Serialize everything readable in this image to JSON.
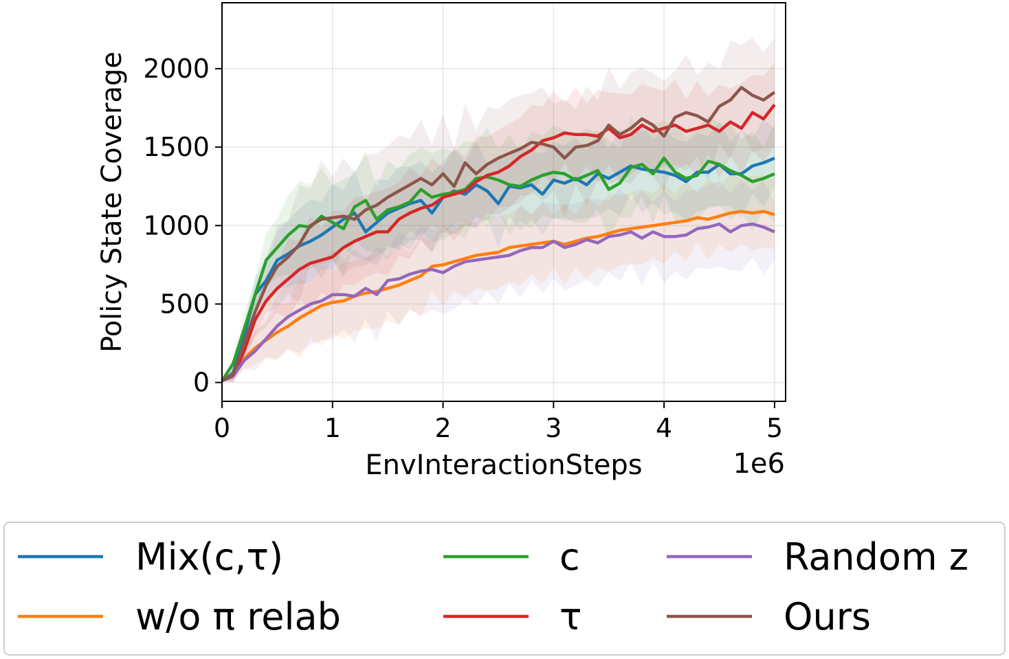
{
  "chart_data": {
    "type": "line",
    "xlabel": "EnvInteractionSteps",
    "x_multiplier": "1e6",
    "ylabel": "Policy State Coverage",
    "xlim": [
      0,
      5.1
    ],
    "ylim": [
      -120,
      2420
    ],
    "xticks": [
      0,
      1,
      2,
      3,
      4,
      5
    ],
    "yticks": [
      0,
      500,
      1000,
      1500,
      2000
    ],
    "grid": true,
    "legend_position": "below",
    "x": [
      0,
      0.1,
      0.2,
      0.3,
      0.4,
      0.5,
      0.6,
      0.7,
      0.8,
      0.9,
      1.0,
      1.1,
      1.2,
      1.3,
      1.4,
      1.5,
      1.6,
      1.7,
      1.8,
      1.9,
      2.0,
      2.1,
      2.2,
      2.3,
      2.4,
      2.5,
      2.6,
      2.7,
      2.8,
      2.9,
      3.0,
      3.1,
      3.2,
      3.3,
      3.4,
      3.5,
      3.6,
      3.7,
      3.8,
      3.9,
      4.0,
      4.1,
      4.2,
      4.3,
      4.4,
      4.5,
      4.6,
      4.7,
      4.8,
      4.9,
      5.0
    ],
    "series": [
      {
        "name": "Mix(c,τ)",
        "color": "#1f77b4",
        "values": [
          10,
          60,
          300,
          560,
          650,
          780,
          820,
          870,
          900,
          940,
          990,
          1040,
          1080,
          960,
          1020,
          1080,
          1110,
          1140,
          1160,
          1080,
          1180,
          1220,
          1200,
          1260,
          1220,
          1140,
          1250,
          1240,
          1260,
          1200,
          1290,
          1270,
          1300,
          1260,
          1330,
          1300,
          1340,
          1380,
          1360,
          1350,
          1340,
          1320,
          1280,
          1340,
          1340,
          1390,
          1330,
          1330,
          1380,
          1400,
          1430
        ],
        "band": 280
      },
      {
        "name": "w/o π relab",
        "color": "#ff7f0e",
        "values": [
          10,
          50,
          150,
          220,
          270,
          320,
          360,
          410,
          450,
          490,
          510,
          520,
          550,
          570,
          580,
          600,
          620,
          650,
          680,
          740,
          750,
          770,
          790,
          810,
          820,
          830,
          860,
          870,
          880,
          890,
          900,
          880,
          900,
          920,
          930,
          950,
          970,
          980,
          990,
          1000,
          1010,
          1020,
          1030,
          1050,
          1040,
          1060,
          1080,
          1090,
          1080,
          1090,
          1070
        ],
        "band": 260
      },
      {
        "name": "c",
        "color": "#2ca02c",
        "values": [
          10,
          120,
          340,
          560,
          780,
          860,
          940,
          1000,
          990,
          1060,
          1020,
          980,
          1120,
          1160,
          1040,
          1100,
          1120,
          1150,
          1230,
          1180,
          1200,
          1210,
          1230,
          1300,
          1310,
          1290,
          1260,
          1250,
          1290,
          1320,
          1340,
          1330,
          1290,
          1320,
          1350,
          1230,
          1270,
          1370,
          1390,
          1330,
          1430,
          1340,
          1300,
          1320,
          1410,
          1390,
          1350,
          1320,
          1280,
          1300,
          1330
        ],
        "band": 320
      },
      {
        "name": "τ",
        "color": "#d62728",
        "values": [
          10,
          40,
          200,
          400,
          520,
          600,
          660,
          720,
          760,
          780,
          800,
          860,
          900,
          930,
          960,
          960,
          1040,
          1080,
          1110,
          1130,
          1180,
          1200,
          1220,
          1280,
          1320,
          1340,
          1380,
          1440,
          1480,
          1540,
          1560,
          1590,
          1580,
          1580,
          1570,
          1620,
          1560,
          1580,
          1640,
          1600,
          1620,
          1640,
          1600,
          1620,
          1640,
          1600,
          1660,
          1620,
          1720,
          1680,
          1770
        ],
        "band": 300
      },
      {
        "name": "Random z",
        "color": "#9467bd",
        "values": [
          10,
          40,
          140,
          200,
          280,
          360,
          420,
          460,
          500,
          520,
          560,
          560,
          550,
          600,
          560,
          650,
          660,
          690,
          710,
          720,
          700,
          740,
          770,
          780,
          790,
          800,
          810,
          840,
          860,
          860,
          900,
          860,
          880,
          910,
          890,
          930,
          940,
          960,
          920,
          960,
          930,
          930,
          940,
          980,
          990,
          1010,
          960,
          1000,
          1010,
          990,
          960
        ],
        "band": 300
      },
      {
        "name": "Ours",
        "color": "#8c564b",
        "values": [
          10,
          50,
          250,
          450,
          620,
          740,
          800,
          880,
          1000,
          1040,
          1050,
          1060,
          1040,
          1100,
          1130,
          1180,
          1220,
          1260,
          1300,
          1260,
          1330,
          1250,
          1400,
          1330,
          1390,
          1430,
          1460,
          1490,
          1530,
          1520,
          1500,
          1430,
          1500,
          1510,
          1540,
          1640,
          1580,
          1620,
          1680,
          1640,
          1570,
          1690,
          1720,
          1700,
          1660,
          1760,
          1800,
          1880,
          1830,
          1800,
          1850
        ],
        "band": 380
      }
    ]
  },
  "legend": {
    "entries": [
      "Mix(c,τ)",
      "w/o π relab",
      "c",
      "τ",
      "Random z",
      "Ours"
    ]
  }
}
